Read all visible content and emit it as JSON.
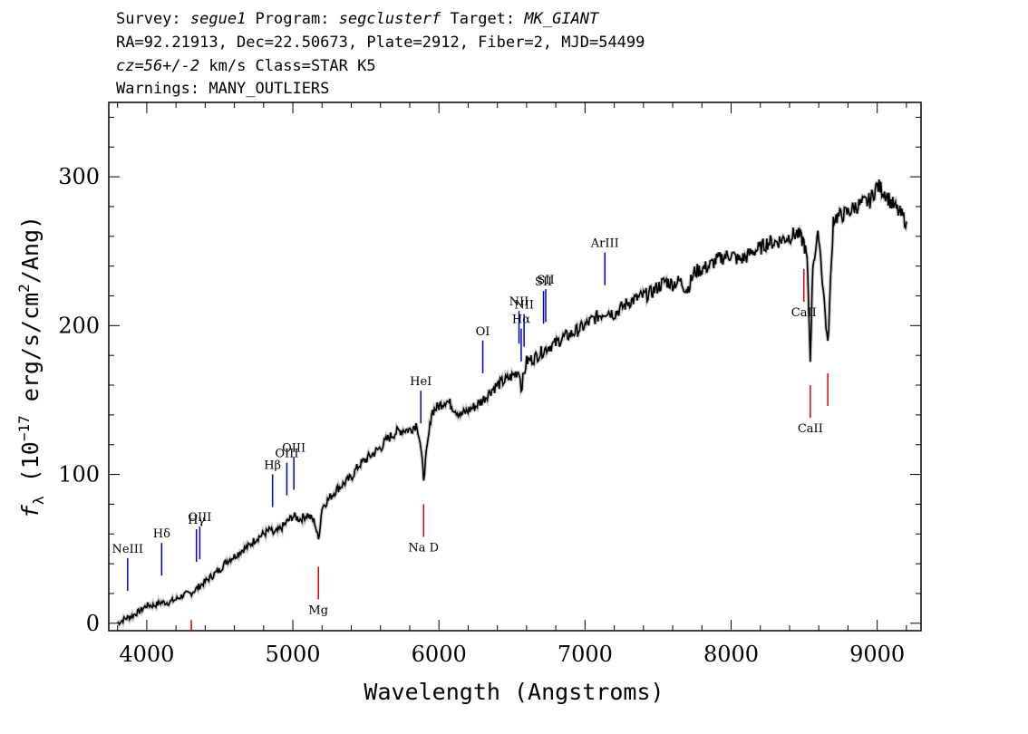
{
  "header": {
    "line1": {
      "survey_label": "Survey: ",
      "survey": "segue1",
      "program_label": " Program: ",
      "program": "segclusterf",
      "target_label": " Target: ",
      "target": "MK_GIANT"
    },
    "line2": "RA=92.21913, Dec=22.50673, Plate=2912, Fiber=2, MJD=54499",
    "line3": {
      "cz": "cz=56+/-2",
      "rest": " km/s Class=STAR K5"
    },
    "line4": "Warnings: MANY_OUTLIERS"
  },
  "chart_data": {
    "type": "line",
    "xlabel": "Wavelength (Angstroms)",
    "ylabel": "f_λ (10^-17 erg/s/cm^2/Ang)",
    "xlim": [
      3740,
      9300
    ],
    "ylim": [
      -5,
      350
    ],
    "x_ticks": [
      4000,
      5000,
      6000,
      7000,
      8000,
      9000
    ],
    "y_ticks": [
      0,
      100,
      200,
      300
    ],
    "colors": {
      "spectrum": "#000000",
      "emission": "#0000cc",
      "absorption": "#dd0000",
      "error": "#aaaaaa"
    },
    "series": [
      {
        "x": [
          3800,
          3850,
          3900,
          3950,
          4000,
          4050,
          4100,
          4150,
          4200,
          4250,
          4300,
          4350,
          4400,
          4450,
          4500,
          4550,
          4600,
          4650,
          4700,
          4750,
          4800,
          4850,
          4860,
          4900,
          4950,
          5000,
          5050,
          5100,
          5150,
          5175,
          5200,
          5250,
          5300,
          5350,
          5400,
          5450,
          5500,
          5550,
          5600,
          5650,
          5700,
          5750,
          5800,
          5850,
          5870,
          5895,
          5950,
          6000,
          6050,
          6100,
          6150,
          6200,
          6250,
          6300,
          6350,
          6400,
          6450,
          6500,
          6550,
          6563,
          6600,
          6650,
          6700,
          6750,
          6800,
          6850,
          6900,
          6950,
          7000,
          7050,
          7100,
          7150,
          7200,
          7250,
          7300,
          7350,
          7400,
          7450,
          7500,
          7550,
          7600,
          7650,
          7700,
          7750,
          7800,
          7850,
          7900,
          7950,
          8000,
          8050,
          8100,
          8150,
          8200,
          8250,
          8300,
          8350,
          8400,
          8450,
          8498,
          8520,
          8542,
          8560,
          8600,
          8662,
          8700,
          8750,
          8800,
          8850,
          8900,
          8950,
          9000,
          9050,
          9100,
          9150,
          9200
        ],
        "y": [
          0,
          3,
          5,
          8,
          12,
          12,
          14,
          14,
          16,
          19,
          20,
          24,
          28,
          32,
          36,
          42,
          45,
          49,
          52,
          57,
          60,
          63,
          60,
          62,
          67,
          72,
          70,
          73,
          68,
          56,
          78,
          84,
          90,
          94,
          98,
          106,
          110,
          114,
          118,
          124,
          128,
          130,
          130,
          134,
          122,
          98,
          142,
          146,
          150,
          145,
          140,
          143,
          146,
          150,
          156,
          160,
          163,
          166,
          170,
          158,
          176,
          178,
          182,
          186,
          188,
          192,
          194,
          197,
          200,
          204,
          207,
          210,
          208,
          212,
          216,
          218,
          220,
          222,
          226,
          230,
          228,
          230,
          224,
          236,
          238,
          240,
          244,
          246,
          248,
          244,
          246,
          250,
          252,
          256,
          256,
          258,
          260,
          262,
          256,
          244,
          178,
          242,
          262,
          186,
          272,
          274,
          276,
          280,
          282,
          284,
          294,
          290,
          282,
          276,
          270
        ]
      }
    ],
    "emission_lines": [
      {
        "label": "NeIII",
        "x": 3869
      },
      {
        "label": "Hδ",
        "x": 4102
      },
      {
        "label": "Hγ",
        "x": 4340
      },
      {
        "label": "OIII",
        "x": 4363
      },
      {
        "label": "Hβ",
        "x": 4861
      },
      {
        "label": "OIII",
        "x": 4959
      },
      {
        "label": "OIII",
        "x": 5007
      },
      {
        "label": "HeI",
        "x": 5876
      },
      {
        "label": "OI",
        "x": 6300
      },
      {
        "label": "NII",
        "x": 6548
      },
      {
        "label": "Hα",
        "x": 6563
      },
      {
        "label": "NII",
        "x": 6583
      },
      {
        "label": "SII",
        "x": 6716
      },
      {
        "label": "SII",
        "x": 6731
      },
      {
        "label": "ArIII",
        "x": 7136
      }
    ],
    "absorption_lines": [
      {
        "label": "",
        "x": 4305
      },
      {
        "label": "Mg",
        "x": 5175
      },
      {
        "label": "Na D",
        "x": 5895
      },
      {
        "label": "CaII",
        "x": 8498
      },
      {
        "label": "CaII",
        "x": 8542
      },
      {
        "label": "",
        "x": 8662
      }
    ]
  }
}
